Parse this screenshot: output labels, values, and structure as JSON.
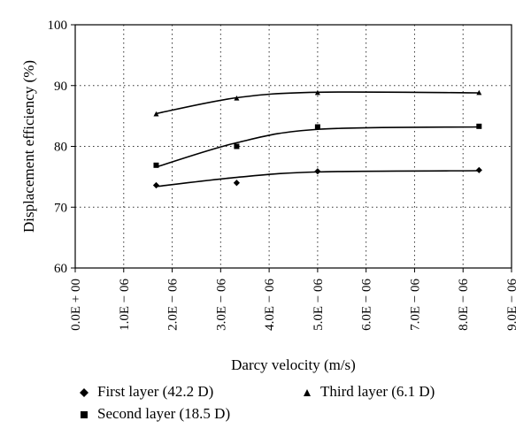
{
  "chart_data": {
    "type": "scatter",
    "xlabel": "Darcy velocity (m/s)",
    "ylabel": "Displacement efficiency (%)",
    "xlim": [
      0,
      9e-06
    ],
    "ylim": [
      60,
      100
    ],
    "x_ticks": [
      "0.0E + 00",
      "1.0E − 06",
      "2.0E − 06",
      "3.0E − 06",
      "4.0E − 06",
      "5.0E − 06",
      "6.0E − 06",
      "7.0E − 06",
      "8.0E − 06",
      "9.0E − 06"
    ],
    "y_ticks": [
      "60",
      "70",
      "80",
      "90",
      "100"
    ],
    "grid": "dotted",
    "legend_position": "bottom",
    "series": [
      {
        "name": "First layer (42.2 D)",
        "marker": "diamond",
        "x": [
          1.67e-06,
          3.33e-06,
          5e-06,
          8.33e-06
        ],
        "y": [
          73.6,
          74.0,
          75.9,
          76.1
        ],
        "trend": [
          73.4,
          74.9,
          75.8,
          76.0
        ]
      },
      {
        "name": "Second layer (18.5 D)",
        "marker": "square",
        "x": [
          1.67e-06,
          3.33e-06,
          5e-06,
          8.33e-06
        ],
        "y": [
          76.9,
          80.0,
          83.2,
          83.3
        ],
        "trend": [
          76.6,
          80.6,
          82.8,
          83.2
        ]
      },
      {
        "name": "Third layer (6.1 D)",
        "marker": "triangle",
        "x": [
          1.67e-06,
          3.33e-06,
          5e-06,
          8.33e-06
        ],
        "y": [
          85.3,
          87.9,
          88.8,
          88.8
        ],
        "trend": [
          85.4,
          88.0,
          88.9,
          88.8
        ]
      }
    ]
  }
}
